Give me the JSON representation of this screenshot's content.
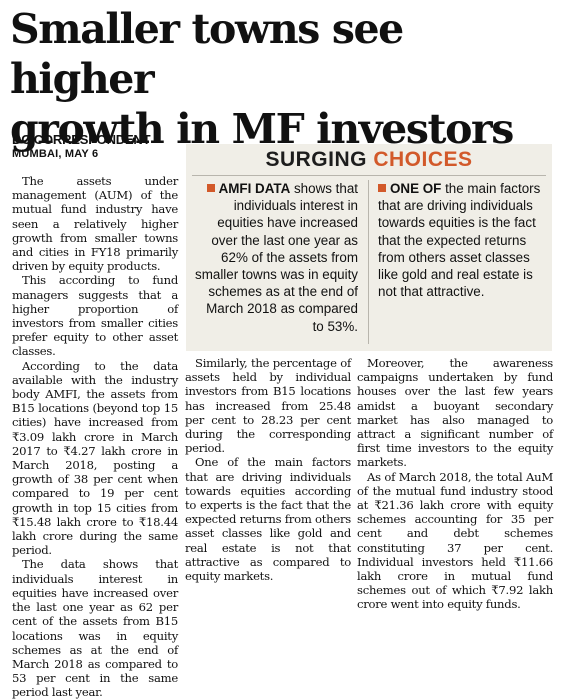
{
  "headline": {
    "line1": "Smaller towns see higher",
    "line2": "growth in MF investors"
  },
  "byline": {
    "author": "DC CORRESPONDENT",
    "dateline": "MUMBAI, MAY 6"
  },
  "sidebar": {
    "title_word1": "SURGING",
    "title_word2": "CHOICES",
    "accent_color": "#d2592a",
    "bullet_icon": "orange-square-bullet",
    "item1": {
      "lead": "AMFI DATA",
      "text": " shows that individuals interest in equities have increased over the last one year as 62% of the assets from smaller towns was in equity schemes as at the end of March 2018 as compared to 53%."
    },
    "item2": {
      "lead": "ONE OF",
      "text": " the main factors that are driving individuals towards equities is the fact that the expected returns from others asset classes like gold and real estate is not that attractive."
    }
  },
  "article": {
    "p1": "The assets under management (AUM) of the mutual fund industry have seen a relatively higher growth from smaller towns and cities in FY18 primarily driven by equity products.",
    "p2": "This according to fund managers suggests that a higher proportion of investors from smaller cities prefer equity to other asset classes.",
    "p3": "According to the data available with the industry body AMFI, the assets from B15 locations (beyond top 15 cities) have increased from ₹3.09 lakh crore in March 2017 to ₹4.27 lakh crore in March 2018, posting a growth of 38 per cent when compared to 19 per cent growth in top 15 cities from ₹15.48 lakh crore to ₹18.44 lakh crore during the same period.",
    "p4": "The data shows that individuals interest in equities have increased over the last one year as 62 per cent of the assets from B15 locations was in equity schemes as at the end of March 2018 as compared to 53 per cent in the same period last year.",
    "p5": "Similarly, the percentage of assets held by individual investors from B15 locations has increased from 25.48 per cent to 28.23 per cent during the corresponding period.",
    "p6": "One of the main factors that are driving individuals towards equities according to experts is the fact that the expected returns from others asset classes like gold and real estate is not that attractive as compared to equity markets.",
    "p7": "Moreover, the awareness campaigns undertaken by fund houses over the last few years amidst a buoyant secondary market has also managed to attract a significant number of first time investors to the equity markets.",
    "p8": "As of March 2018, the total AuM of the mutual fund industry stood at ₹21.36 lakh crore with equity schemes accounting for 35 per cent and debt schemes constituting 37 per cent. Individual investors held ₹11.66 lakh crore in mutual fund schemes out of which ₹7.92 lakh crore went into equity funds."
  }
}
